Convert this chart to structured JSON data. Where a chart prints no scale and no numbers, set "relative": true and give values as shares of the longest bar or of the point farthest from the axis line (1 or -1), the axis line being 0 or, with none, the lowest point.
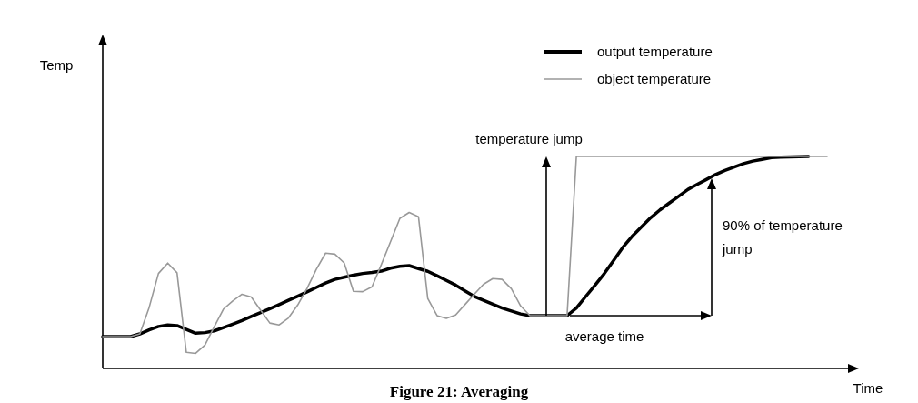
{
  "chart_data": {
    "type": "line",
    "title": "Figure 21: Averaging",
    "xlabel": "Time",
    "relative": true,
    "legend": "top right",
    "tick_labels": false,
    "categories": [
      null,
      null,
      null,
      null,
      null,
      null,
      null,
      null,
      null,
      null,
      null,
      null,
      null,
      null,
      null,
      null,
      null,
      null,
      null,
      null,
      null,
      null,
      null,
      null,
      null,
      null,
      null,
      null,
      null,
      null,
      null,
      null,
      null,
      null,
      null,
      null,
      null,
      null,
      null,
      null,
      null,
      null,
      null,
      null,
      null,
      null,
      null,
      null,
      null,
      null,
      null,
      null,
      null,
      null,
      null,
      null,
      null,
      null,
      null,
      null,
      null,
      null,
      null,
      null,
      null,
      null,
      null,
      null,
      null,
      null,
      null,
      null,
      null,
      null,
      null,
      null,
      null,
      null,
      null
    ],
    "series": [
      {
        "name": "output temperature",
        "color": "#000000",
        "values": [
          0.15,
          0.15,
          0.15,
          0.15,
          0.163,
          0.182,
          0.198,
          0.205,
          0.202,
          0.184,
          0.166,
          0.169,
          0.177,
          0.193,
          0.209,
          0.226,
          0.245,
          0.263,
          0.282,
          0.301,
          0.321,
          0.341,
          0.361,
          0.382,
          0.403,
          0.42,
          0.43,
          0.44,
          0.448,
          0.453,
          0.459,
          0.473,
          0.482,
          0.485,
          0.471,
          0.458,
          0.437,
          0.415,
          0.393,
          0.366,
          0.34,
          0.321,
          0.303,
          0.285,
          0.271,
          0.257,
          0.249,
          0.249,
          0.249,
          0.249,
          0.249,
          0.285,
          0.339,
          0.392,
          0.447,
          0.509,
          0.571,
          0.623,
          0.667,
          0.711,
          0.748,
          0.78,
          0.812,
          0.844,
          0.868,
          0.891,
          0.915,
          0.934,
          0.95,
          0.966,
          0.978,
          0.986,
          0.995,
          0.997,
          0.998,
          0.999,
          1.0,
          null,
          null
        ]
      },
      {
        "name": "object temperature",
        "color": "#999999",
        "values": [
          0.15,
          0.15,
          0.15,
          0.15,
          0.163,
          0.288,
          0.448,
          0.497,
          0.451,
          0.076,
          0.071,
          0.11,
          0.196,
          0.28,
          0.318,
          0.35,
          0.337,
          0.275,
          0.214,
          0.205,
          0.238,
          0.299,
          0.377,
          0.467,
          0.544,
          0.539,
          0.498,
          0.364,
          0.362,
          0.385,
          0.49,
          0.599,
          0.708,
          0.736,
          0.716,
          0.33,
          0.249,
          0.236,
          0.252,
          0.301,
          0.35,
          0.397,
          0.424,
          0.42,
          0.376,
          0.295,
          0.249,
          0.249,
          0.249,
          0.249,
          0.249,
          1.0,
          1.0,
          1.0,
          1.0,
          1.0,
          1.0,
          1.0,
          1.0,
          1.0,
          1.0,
          1.0,
          1.0,
          1.0,
          1.0,
          1.0,
          1.0,
          1.0,
          1.0,
          1.0,
          1.0,
          1.0,
          1.0,
          1.0,
          1.0,
          1.0,
          1.0,
          1.0,
          1.0
        ]
      }
    ],
    "annotations": [
      "temperature jump",
      "90% of temperature jump",
      "average time",
      "Temp"
    ]
  }
}
